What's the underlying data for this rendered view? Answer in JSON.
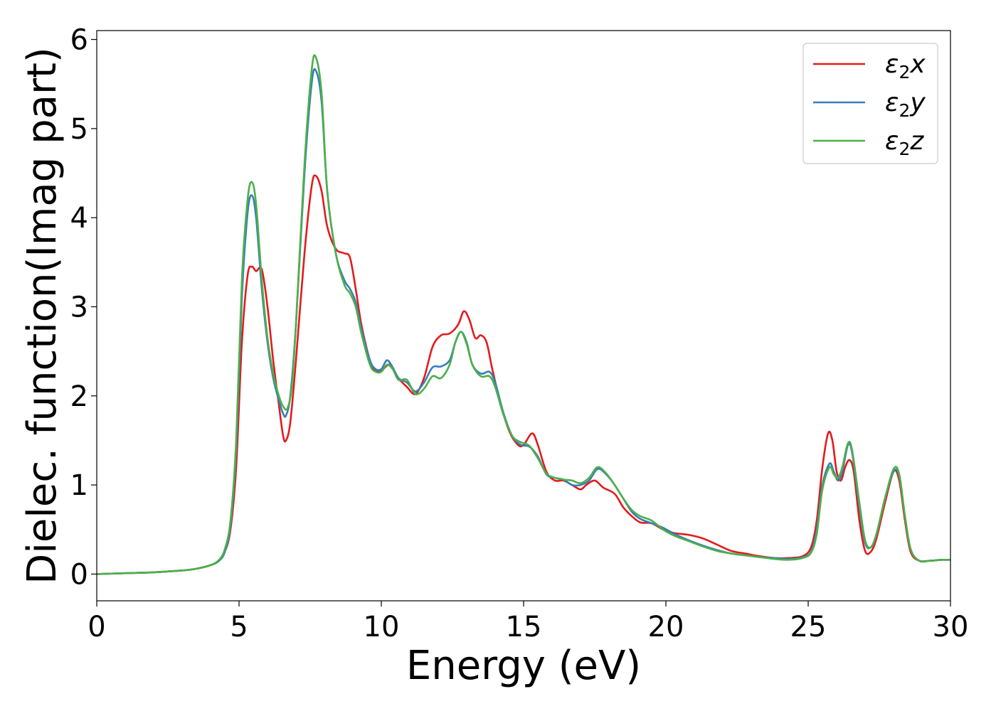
{
  "chart_data": {
    "type": "line",
    "title": "",
    "xlabel": "Energy (eV)",
    "ylabel": "Dielec. function(Imag part)",
    "xlim": [
      0,
      30
    ],
    "ylim": [
      -0.3,
      6.1
    ],
    "xticks": [
      0,
      5,
      10,
      15,
      20,
      25,
      30
    ],
    "yticks": [
      0,
      1,
      2,
      3,
      4,
      5,
      6
    ],
    "grid": false,
    "legend_position": "top-right",
    "series": [
      {
        "name": "ε₂x",
        "legend_base": "ε",
        "legend_sub": "2",
        "legend_tail": "x",
        "color": "#e41a1c",
        "points": [
          [
            0,
            0
          ],
          [
            1,
            0.01
          ],
          [
            2,
            0.02
          ],
          [
            3,
            0.04
          ],
          [
            3.5,
            0.06
          ],
          [
            4,
            0.1
          ],
          [
            4.3,
            0.15
          ],
          [
            4.5,
            0.25
          ],
          [
            4.7,
            0.5
          ],
          [
            4.9,
            1.2
          ],
          [
            5.1,
            2.6
          ],
          [
            5.3,
            3.35
          ],
          [
            5.45,
            3.45
          ],
          [
            5.6,
            3.4
          ],
          [
            5.8,
            3.42
          ],
          [
            6.0,
            3.0
          ],
          [
            6.2,
            2.4
          ],
          [
            6.4,
            1.9
          ],
          [
            6.55,
            1.55
          ],
          [
            6.65,
            1.5
          ],
          [
            6.8,
            1.7
          ],
          [
            7.0,
            2.4
          ],
          [
            7.3,
            3.6
          ],
          [
            7.55,
            4.35
          ],
          [
            7.7,
            4.47
          ],
          [
            7.9,
            4.3
          ],
          [
            8.1,
            3.9
          ],
          [
            8.4,
            3.65
          ],
          [
            8.7,
            3.6
          ],
          [
            8.9,
            3.55
          ],
          [
            9.1,
            3.2
          ],
          [
            9.3,
            2.8
          ],
          [
            9.6,
            2.4
          ],
          [
            9.8,
            2.28
          ],
          [
            10.0,
            2.28
          ],
          [
            10.3,
            2.35
          ],
          [
            10.6,
            2.2
          ],
          [
            10.9,
            2.1
          ],
          [
            11.2,
            2.02
          ],
          [
            11.5,
            2.2
          ],
          [
            11.8,
            2.55
          ],
          [
            12.1,
            2.68
          ],
          [
            12.4,
            2.7
          ],
          [
            12.7,
            2.8
          ],
          [
            12.9,
            2.95
          ],
          [
            13.1,
            2.85
          ],
          [
            13.3,
            2.65
          ],
          [
            13.5,
            2.68
          ],
          [
            13.7,
            2.6
          ],
          [
            13.9,
            2.3
          ],
          [
            14.2,
            1.9
          ],
          [
            14.5,
            1.6
          ],
          [
            14.8,
            1.45
          ],
          [
            15.0,
            1.45
          ],
          [
            15.3,
            1.58
          ],
          [
            15.5,
            1.45
          ],
          [
            15.8,
            1.15
          ],
          [
            16.1,
            1.05
          ],
          [
            16.4,
            1.05
          ],
          [
            16.7,
            1.0
          ],
          [
            17.0,
            0.95
          ],
          [
            17.2,
            1.0
          ],
          [
            17.5,
            1.05
          ],
          [
            17.8,
            0.97
          ],
          [
            18.2,
            0.9
          ],
          [
            18.5,
            0.75
          ],
          [
            18.8,
            0.65
          ],
          [
            19.1,
            0.58
          ],
          [
            19.5,
            0.57
          ],
          [
            19.9,
            0.5
          ],
          [
            20.3,
            0.46
          ],
          [
            20.8,
            0.44
          ],
          [
            21.3,
            0.4
          ],
          [
            21.8,
            0.33
          ],
          [
            22.3,
            0.26
          ],
          [
            22.8,
            0.23
          ],
          [
            23.3,
            0.2
          ],
          [
            23.8,
            0.18
          ],
          [
            24.3,
            0.18
          ],
          [
            24.8,
            0.2
          ],
          [
            25.1,
            0.3
          ],
          [
            25.3,
            0.6
          ],
          [
            25.5,
            1.2
          ],
          [
            25.7,
            1.58
          ],
          [
            25.85,
            1.5
          ],
          [
            26.0,
            1.15
          ],
          [
            26.15,
            1.05
          ],
          [
            26.3,
            1.2
          ],
          [
            26.45,
            1.28
          ],
          [
            26.6,
            1.15
          ],
          [
            26.8,
            0.6
          ],
          [
            27.0,
            0.26
          ],
          [
            27.2,
            0.25
          ],
          [
            27.4,
            0.4
          ],
          [
            27.7,
            0.8
          ],
          [
            28.0,
            1.15
          ],
          [
            28.2,
            1.05
          ],
          [
            28.4,
            0.6
          ],
          [
            28.6,
            0.25
          ],
          [
            28.9,
            0.15
          ],
          [
            29.3,
            0.15
          ],
          [
            29.7,
            0.16
          ],
          [
            30,
            0.16
          ]
        ]
      },
      {
        "name": "ε₂y",
        "legend_base": "ε",
        "legend_sub": "2",
        "legend_tail": "y",
        "color": "#377eb8",
        "points": [
          [
            0,
            0
          ],
          [
            1,
            0.01
          ],
          [
            2,
            0.02
          ],
          [
            3,
            0.04
          ],
          [
            3.5,
            0.06
          ],
          [
            4,
            0.1
          ],
          [
            4.3,
            0.15
          ],
          [
            4.5,
            0.25
          ],
          [
            4.7,
            0.55
          ],
          [
            4.9,
            1.4
          ],
          [
            5.1,
            3.1
          ],
          [
            5.3,
            4.05
          ],
          [
            5.45,
            4.25
          ],
          [
            5.6,
            4.0
          ],
          [
            5.8,
            3.2
          ],
          [
            6.0,
            2.6
          ],
          [
            6.2,
            2.2
          ],
          [
            6.4,
            1.95
          ],
          [
            6.55,
            1.8
          ],
          [
            6.65,
            1.78
          ],
          [
            6.8,
            2.0
          ],
          [
            7.0,
            2.8
          ],
          [
            7.3,
            4.5
          ],
          [
            7.55,
            5.5
          ],
          [
            7.7,
            5.65
          ],
          [
            7.9,
            5.3
          ],
          [
            8.1,
            4.3
          ],
          [
            8.4,
            3.6
          ],
          [
            8.7,
            3.3
          ],
          [
            8.9,
            3.2
          ],
          [
            9.1,
            3.05
          ],
          [
            9.3,
            2.75
          ],
          [
            9.6,
            2.4
          ],
          [
            9.8,
            2.3
          ],
          [
            10.0,
            2.3
          ],
          [
            10.2,
            2.4
          ],
          [
            10.4,
            2.32
          ],
          [
            10.6,
            2.2
          ],
          [
            10.9,
            2.15
          ],
          [
            11.2,
            2.05
          ],
          [
            11.5,
            2.15
          ],
          [
            11.8,
            2.32
          ],
          [
            12.1,
            2.33
          ],
          [
            12.4,
            2.4
          ],
          [
            12.6,
            2.6
          ],
          [
            12.8,
            2.72
          ],
          [
            13.0,
            2.6
          ],
          [
            13.2,
            2.35
          ],
          [
            13.5,
            2.25
          ],
          [
            13.8,
            2.27
          ],
          [
            14.0,
            2.15
          ],
          [
            14.3,
            1.8
          ],
          [
            14.6,
            1.55
          ],
          [
            14.9,
            1.45
          ],
          [
            15.2,
            1.43
          ],
          [
            15.5,
            1.32
          ],
          [
            15.8,
            1.12
          ],
          [
            16.1,
            1.08
          ],
          [
            16.4,
            1.06
          ],
          [
            16.7,
            1.0
          ],
          [
            17.0,
            1.0
          ],
          [
            17.3,
            1.05
          ],
          [
            17.6,
            1.18
          ],
          [
            17.9,
            1.12
          ],
          [
            18.2,
            1.0
          ],
          [
            18.5,
            0.85
          ],
          [
            18.8,
            0.7
          ],
          [
            19.1,
            0.62
          ],
          [
            19.5,
            0.57
          ],
          [
            19.9,
            0.52
          ],
          [
            20.3,
            0.45
          ],
          [
            20.8,
            0.38
          ],
          [
            21.3,
            0.32
          ],
          [
            21.8,
            0.27
          ],
          [
            22.3,
            0.23
          ],
          [
            22.8,
            0.21
          ],
          [
            23.3,
            0.19
          ],
          [
            23.8,
            0.18
          ],
          [
            24.3,
            0.17
          ],
          [
            24.8,
            0.19
          ],
          [
            25.1,
            0.25
          ],
          [
            25.3,
            0.5
          ],
          [
            25.5,
            1.0
          ],
          [
            25.75,
            1.24
          ],
          [
            25.9,
            1.15
          ],
          [
            26.05,
            1.05
          ],
          [
            26.2,
            1.15
          ],
          [
            26.4,
            1.45
          ],
          [
            26.55,
            1.35
          ],
          [
            26.8,
            0.75
          ],
          [
            27.0,
            0.35
          ],
          [
            27.2,
            0.3
          ],
          [
            27.4,
            0.45
          ],
          [
            27.7,
            0.85
          ],
          [
            28.0,
            1.15
          ],
          [
            28.2,
            1.1
          ],
          [
            28.4,
            0.65
          ],
          [
            28.6,
            0.28
          ],
          [
            28.9,
            0.15
          ],
          [
            29.3,
            0.15
          ],
          [
            29.7,
            0.16
          ],
          [
            30,
            0.16
          ]
        ]
      },
      {
        "name": "ε₂z",
        "legend_base": "ε",
        "legend_sub": "2",
        "legend_tail": "z",
        "color": "#4daf4a",
        "points": [
          [
            0,
            0
          ],
          [
            1,
            0.01
          ],
          [
            2,
            0.02
          ],
          [
            3,
            0.04
          ],
          [
            3.5,
            0.06
          ],
          [
            4,
            0.1
          ],
          [
            4.3,
            0.16
          ],
          [
            4.5,
            0.28
          ],
          [
            4.7,
            0.6
          ],
          [
            4.9,
            1.5
          ],
          [
            5.1,
            3.3
          ],
          [
            5.3,
            4.2
          ],
          [
            5.45,
            4.4
          ],
          [
            5.6,
            4.15
          ],
          [
            5.8,
            3.3
          ],
          [
            6.0,
            2.65
          ],
          [
            6.2,
            2.25
          ],
          [
            6.4,
            2.0
          ],
          [
            6.55,
            1.88
          ],
          [
            6.7,
            1.86
          ],
          [
            6.85,
            2.1
          ],
          [
            7.0,
            2.8
          ],
          [
            7.3,
            4.6
          ],
          [
            7.55,
            5.65
          ],
          [
            7.7,
            5.8
          ],
          [
            7.9,
            5.4
          ],
          [
            8.1,
            4.3
          ],
          [
            8.4,
            3.6
          ],
          [
            8.7,
            3.25
          ],
          [
            8.9,
            3.15
          ],
          [
            9.1,
            3.0
          ],
          [
            9.3,
            2.7
          ],
          [
            9.6,
            2.35
          ],
          [
            9.8,
            2.27
          ],
          [
            10.0,
            2.27
          ],
          [
            10.2,
            2.35
          ],
          [
            10.4,
            2.3
          ],
          [
            10.6,
            2.18
          ],
          [
            10.9,
            2.18
          ],
          [
            11.2,
            2.02
          ],
          [
            11.5,
            2.08
          ],
          [
            11.8,
            2.22
          ],
          [
            12.1,
            2.2
          ],
          [
            12.4,
            2.35
          ],
          [
            12.6,
            2.6
          ],
          [
            12.8,
            2.72
          ],
          [
            13.0,
            2.58
          ],
          [
            13.2,
            2.35
          ],
          [
            13.5,
            2.22
          ],
          [
            13.8,
            2.22
          ],
          [
            14.0,
            2.1
          ],
          [
            14.3,
            1.78
          ],
          [
            14.6,
            1.55
          ],
          [
            14.9,
            1.48
          ],
          [
            15.2,
            1.44
          ],
          [
            15.5,
            1.3
          ],
          [
            15.8,
            1.13
          ],
          [
            16.1,
            1.08
          ],
          [
            16.4,
            1.06
          ],
          [
            16.7,
            1.05
          ],
          [
            17.0,
            1.02
          ],
          [
            17.3,
            1.08
          ],
          [
            17.6,
            1.2
          ],
          [
            17.9,
            1.13
          ],
          [
            18.2,
            1.0
          ],
          [
            18.5,
            0.85
          ],
          [
            18.8,
            0.72
          ],
          [
            19.1,
            0.65
          ],
          [
            19.5,
            0.6
          ],
          [
            19.9,
            0.5
          ],
          [
            20.3,
            0.43
          ],
          [
            20.8,
            0.37
          ],
          [
            21.3,
            0.31
          ],
          [
            21.8,
            0.26
          ],
          [
            22.3,
            0.23
          ],
          [
            22.8,
            0.21
          ],
          [
            23.3,
            0.19
          ],
          [
            23.8,
            0.17
          ],
          [
            24.3,
            0.16
          ],
          [
            24.8,
            0.18
          ],
          [
            25.1,
            0.24
          ],
          [
            25.3,
            0.45
          ],
          [
            25.5,
            0.95
          ],
          [
            25.75,
            1.2
          ],
          [
            25.9,
            1.12
          ],
          [
            26.05,
            1.08
          ],
          [
            26.2,
            1.2
          ],
          [
            26.4,
            1.47
          ],
          [
            26.55,
            1.38
          ],
          [
            26.8,
            0.8
          ],
          [
            27.0,
            0.38
          ],
          [
            27.2,
            0.3
          ],
          [
            27.4,
            0.45
          ],
          [
            27.7,
            0.85
          ],
          [
            28.0,
            1.18
          ],
          [
            28.2,
            1.12
          ],
          [
            28.4,
            0.65
          ],
          [
            28.6,
            0.28
          ],
          [
            28.9,
            0.15
          ],
          [
            29.3,
            0.15
          ],
          [
            29.7,
            0.16
          ],
          [
            30,
            0.16
          ]
        ]
      }
    ]
  }
}
